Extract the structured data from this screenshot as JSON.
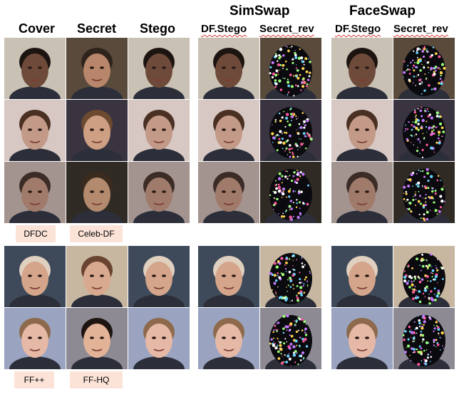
{
  "headers": {
    "cover": "Cover",
    "secret": "Secret",
    "stego": "Stego",
    "simswap": "SimSwap",
    "faceswap": "FaceSwap",
    "df_stego": "DF.Stego",
    "secret_rev": "Secret_rev"
  },
  "dataset_tags": {
    "dfdc": "DFDC",
    "celeb_df": "Celeb-DF",
    "ffpp": "FF++",
    "ffhq": "FF-HQ"
  },
  "colors": {
    "tag_bg": "#fbe3d8",
    "squiggle": "#d93a3a"
  }
}
